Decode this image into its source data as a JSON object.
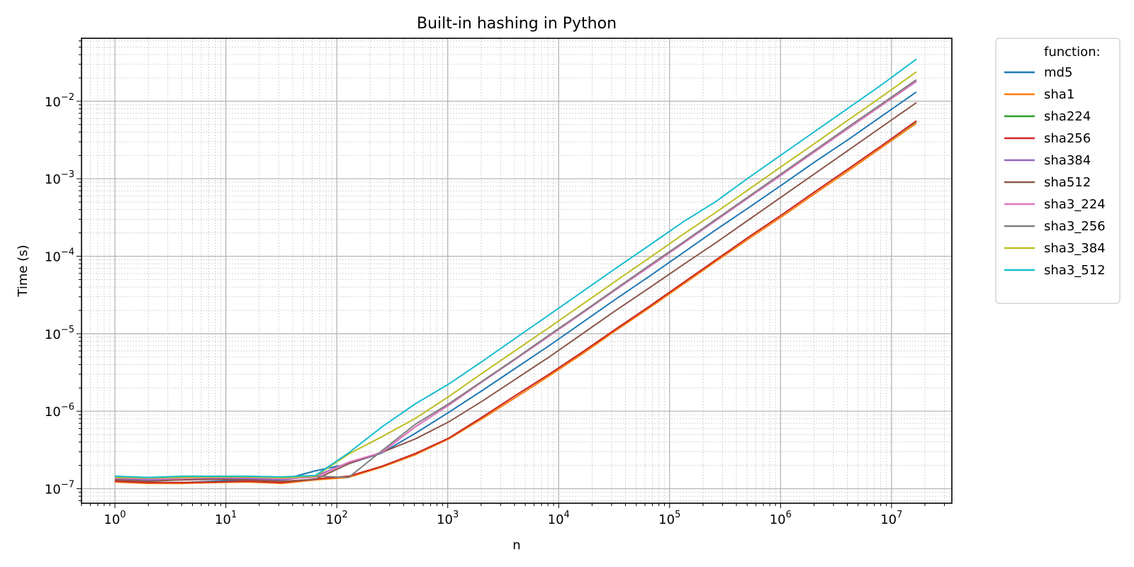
{
  "chart_data": {
    "type": "line",
    "title": "Built-in hashing in Python",
    "xlabel": "n",
    "ylabel": "Time (s)",
    "xscale": "log",
    "yscale": "log",
    "xlim": [
      0.5,
      35000000
    ],
    "ylim": [
      6.5e-08,
      0.065
    ],
    "grid": "major and minor",
    "legend": {
      "title": "function:",
      "placement": "outside right, top"
    },
    "x_tick_labels": [
      {
        "base": "10",
        "exp": "0"
      },
      {
        "base": "10",
        "exp": "1"
      },
      {
        "base": "10",
        "exp": "2"
      },
      {
        "base": "10",
        "exp": "3"
      },
      {
        "base": "10",
        "exp": "4"
      },
      {
        "base": "10",
        "exp": "5"
      },
      {
        "base": "10",
        "exp": "6"
      },
      {
        "base": "10",
        "exp": "7"
      }
    ],
    "y_tick_labels": [
      {
        "base": "10",
        "exp": "−7"
      },
      {
        "base": "10",
        "exp": "−6"
      },
      {
        "base": "10",
        "exp": "−5"
      },
      {
        "base": "10",
        "exp": "−4"
      },
      {
        "base": "10",
        "exp": "−3"
      },
      {
        "base": "10",
        "exp": "−2"
      }
    ],
    "x": [
      1,
      2,
      4,
      8,
      16,
      32,
      64,
      128,
      256,
      512,
      1024,
      2048,
      4096,
      8192,
      16384,
      32768,
      65536,
      131072,
      262144,
      524288,
      1048576,
      2097152,
      4194304,
      8388608,
      16777216
    ],
    "series": [
      {
        "name": "md5",
        "color": "#1f77b4",
        "values": [
          1.25e-07,
          1.2e-07,
          1.2e-07,
          1.25e-07,
          1.3e-07,
          1.3e-07,
          1.7e-07,
          2.1e-07,
          2.9e-07,
          5.2e-07,
          9.7e-07,
          1.85e-06,
          3.6e-06,
          7e-06,
          1.4e-05,
          2.8e-05,
          5.5e-05,
          0.00011,
          0.00022,
          0.00043,
          0.00085,
          0.0017,
          0.0033,
          0.0066,
          0.0132
        ]
      },
      {
        "name": "sha1",
        "color": "#ff7f0e",
        "values": [
          1.22e-07,
          1.17e-07,
          1.17e-07,
          1.2e-07,
          1.22e-07,
          1.17e-07,
          1.3e-07,
          1.4e-07,
          1.9e-07,
          2.75e-07,
          4.4e-07,
          8e-07,
          1.5e-06,
          2.85e-06,
          5.5e-06,
          1.1e-05,
          2.15e-05,
          4.3e-05,
          8.6e-05,
          0.00017,
          0.00033,
          0.00066,
          0.0013,
          0.0026,
          0.0052
        ]
      },
      {
        "name": "sha224",
        "color": "#2ca02c",
        "values": [
          1.25e-07,
          1.2e-07,
          1.2e-07,
          1.22e-07,
          1.25e-07,
          1.2e-07,
          1.33e-07,
          1.45e-07,
          1.95e-07,
          2.85e-07,
          4.5e-07,
          8.4e-07,
          1.6e-06,
          3e-06,
          5.8e-06,
          1.15e-05,
          2.25e-05,
          4.5e-05,
          9e-05,
          0.00018,
          0.00035,
          0.0007,
          0.00138,
          0.00275,
          0.0055
        ]
      },
      {
        "name": "sha256",
        "color": "#d62728",
        "values": [
          1.25e-07,
          1.2e-07,
          1.2e-07,
          1.22e-07,
          1.25e-07,
          1.2e-07,
          1.33e-07,
          1.45e-07,
          1.95e-07,
          2.85e-07,
          4.5e-07,
          8.4e-07,
          1.6e-06,
          3e-06,
          5.8e-06,
          1.15e-05,
          2.25e-05,
          4.5e-05,
          9e-05,
          0.00018,
          0.00035,
          0.0007,
          0.00138,
          0.00275,
          0.0056
        ]
      },
      {
        "name": "sha384",
        "color": "#9467bd",
        "values": [
          1.35e-07,
          1.3e-07,
          1.3e-07,
          1.35e-07,
          1.35e-07,
          1.3e-07,
          1.45e-07,
          2.2e-07,
          2.95e-07,
          6.3e-07,
          1.2e-06,
          2.4e-06,
          4.7e-06,
          9.3e-06,
          1.85e-05,
          3.7e-05,
          7.3e-05,
          0.000145,
          0.00029,
          0.00058,
          0.00115,
          0.0023,
          0.0046,
          0.0091,
          0.018
        ]
      },
      {
        "name": "sha512",
        "color": "#8c564b",
        "values": [
          1.3e-07,
          1.25e-07,
          1.3e-07,
          1.32e-07,
          1.3e-07,
          1.25e-07,
          1.32e-07,
          2.1e-07,
          2.95e-07,
          4.4e-07,
          7.3e-07,
          1.35e-06,
          2.6e-06,
          5e-06,
          1e-05,
          2e-05,
          3.9e-05,
          7.7e-05,
          0.00015,
          0.0003,
          0.0006,
          0.0012,
          0.0024,
          0.0048,
          0.0096
        ]
      },
      {
        "name": "sha3_224",
        "color": "#e377c2",
        "values": [
          1.38e-07,
          1.35e-07,
          1.35e-07,
          1.4e-07,
          1.4e-07,
          1.35e-07,
          1.4e-07,
          2.2e-07,
          2.95e-07,
          6.3e-07,
          1.2e-06,
          2.4e-06,
          4.7e-06,
          9.3e-06,
          1.85e-05,
          3.7e-05,
          7.3e-05,
          0.000145,
          0.00029,
          0.00058,
          0.00115,
          0.0023,
          0.0046,
          0.0091,
          0.0182
        ]
      },
      {
        "name": "sha3_256",
        "color": "#7f7f7f",
        "values": [
          1.42e-07,
          1.38e-07,
          1.4e-07,
          1.42e-07,
          1.42e-07,
          1.38e-07,
          1.45e-07,
          1.4e-07,
          3.1e-07,
          6.8e-07,
          1.25e-06,
          2.45e-06,
          4.8e-06,
          9.6e-06,
          1.9e-05,
          3.8e-05,
          7.6e-05,
          0.00015,
          0.0003,
          0.0006,
          0.0012,
          0.0024,
          0.0048,
          0.0095,
          0.019
        ]
      },
      {
        "name": "sha3_384",
        "color": "#bcbd22",
        "values": [
          1.4e-07,
          1.38e-07,
          1.4e-07,
          1.42e-07,
          1.42e-07,
          1.38e-07,
          1.45e-07,
          2.8e-07,
          4.7e-07,
          8.1e-07,
          1.55e-06,
          3.1e-06,
          6.1e-06,
          1.2e-05,
          2.4e-05,
          4.8e-05,
          9.5e-05,
          0.00019,
          0.00037,
          0.00074,
          0.00148,
          0.00295,
          0.0059,
          0.0118,
          0.024
        ]
      },
      {
        "name": "sha3_512",
        "color": "#17becf",
        "values": [
          1.45e-07,
          1.4e-07,
          1.45e-07,
          1.45e-07,
          1.45e-07,
          1.42e-07,
          1.48e-07,
          2.9e-07,
          6.3e-07,
          1.25e-06,
          2.25e-06,
          4.4e-06,
          8.8e-06,
          1.75e-05,
          3.5e-05,
          7e-05,
          0.000138,
          0.000275,
          0.00051,
          0.00105,
          0.0021,
          0.0042,
          0.0084,
          0.0168,
          0.035
        ]
      }
    ]
  }
}
